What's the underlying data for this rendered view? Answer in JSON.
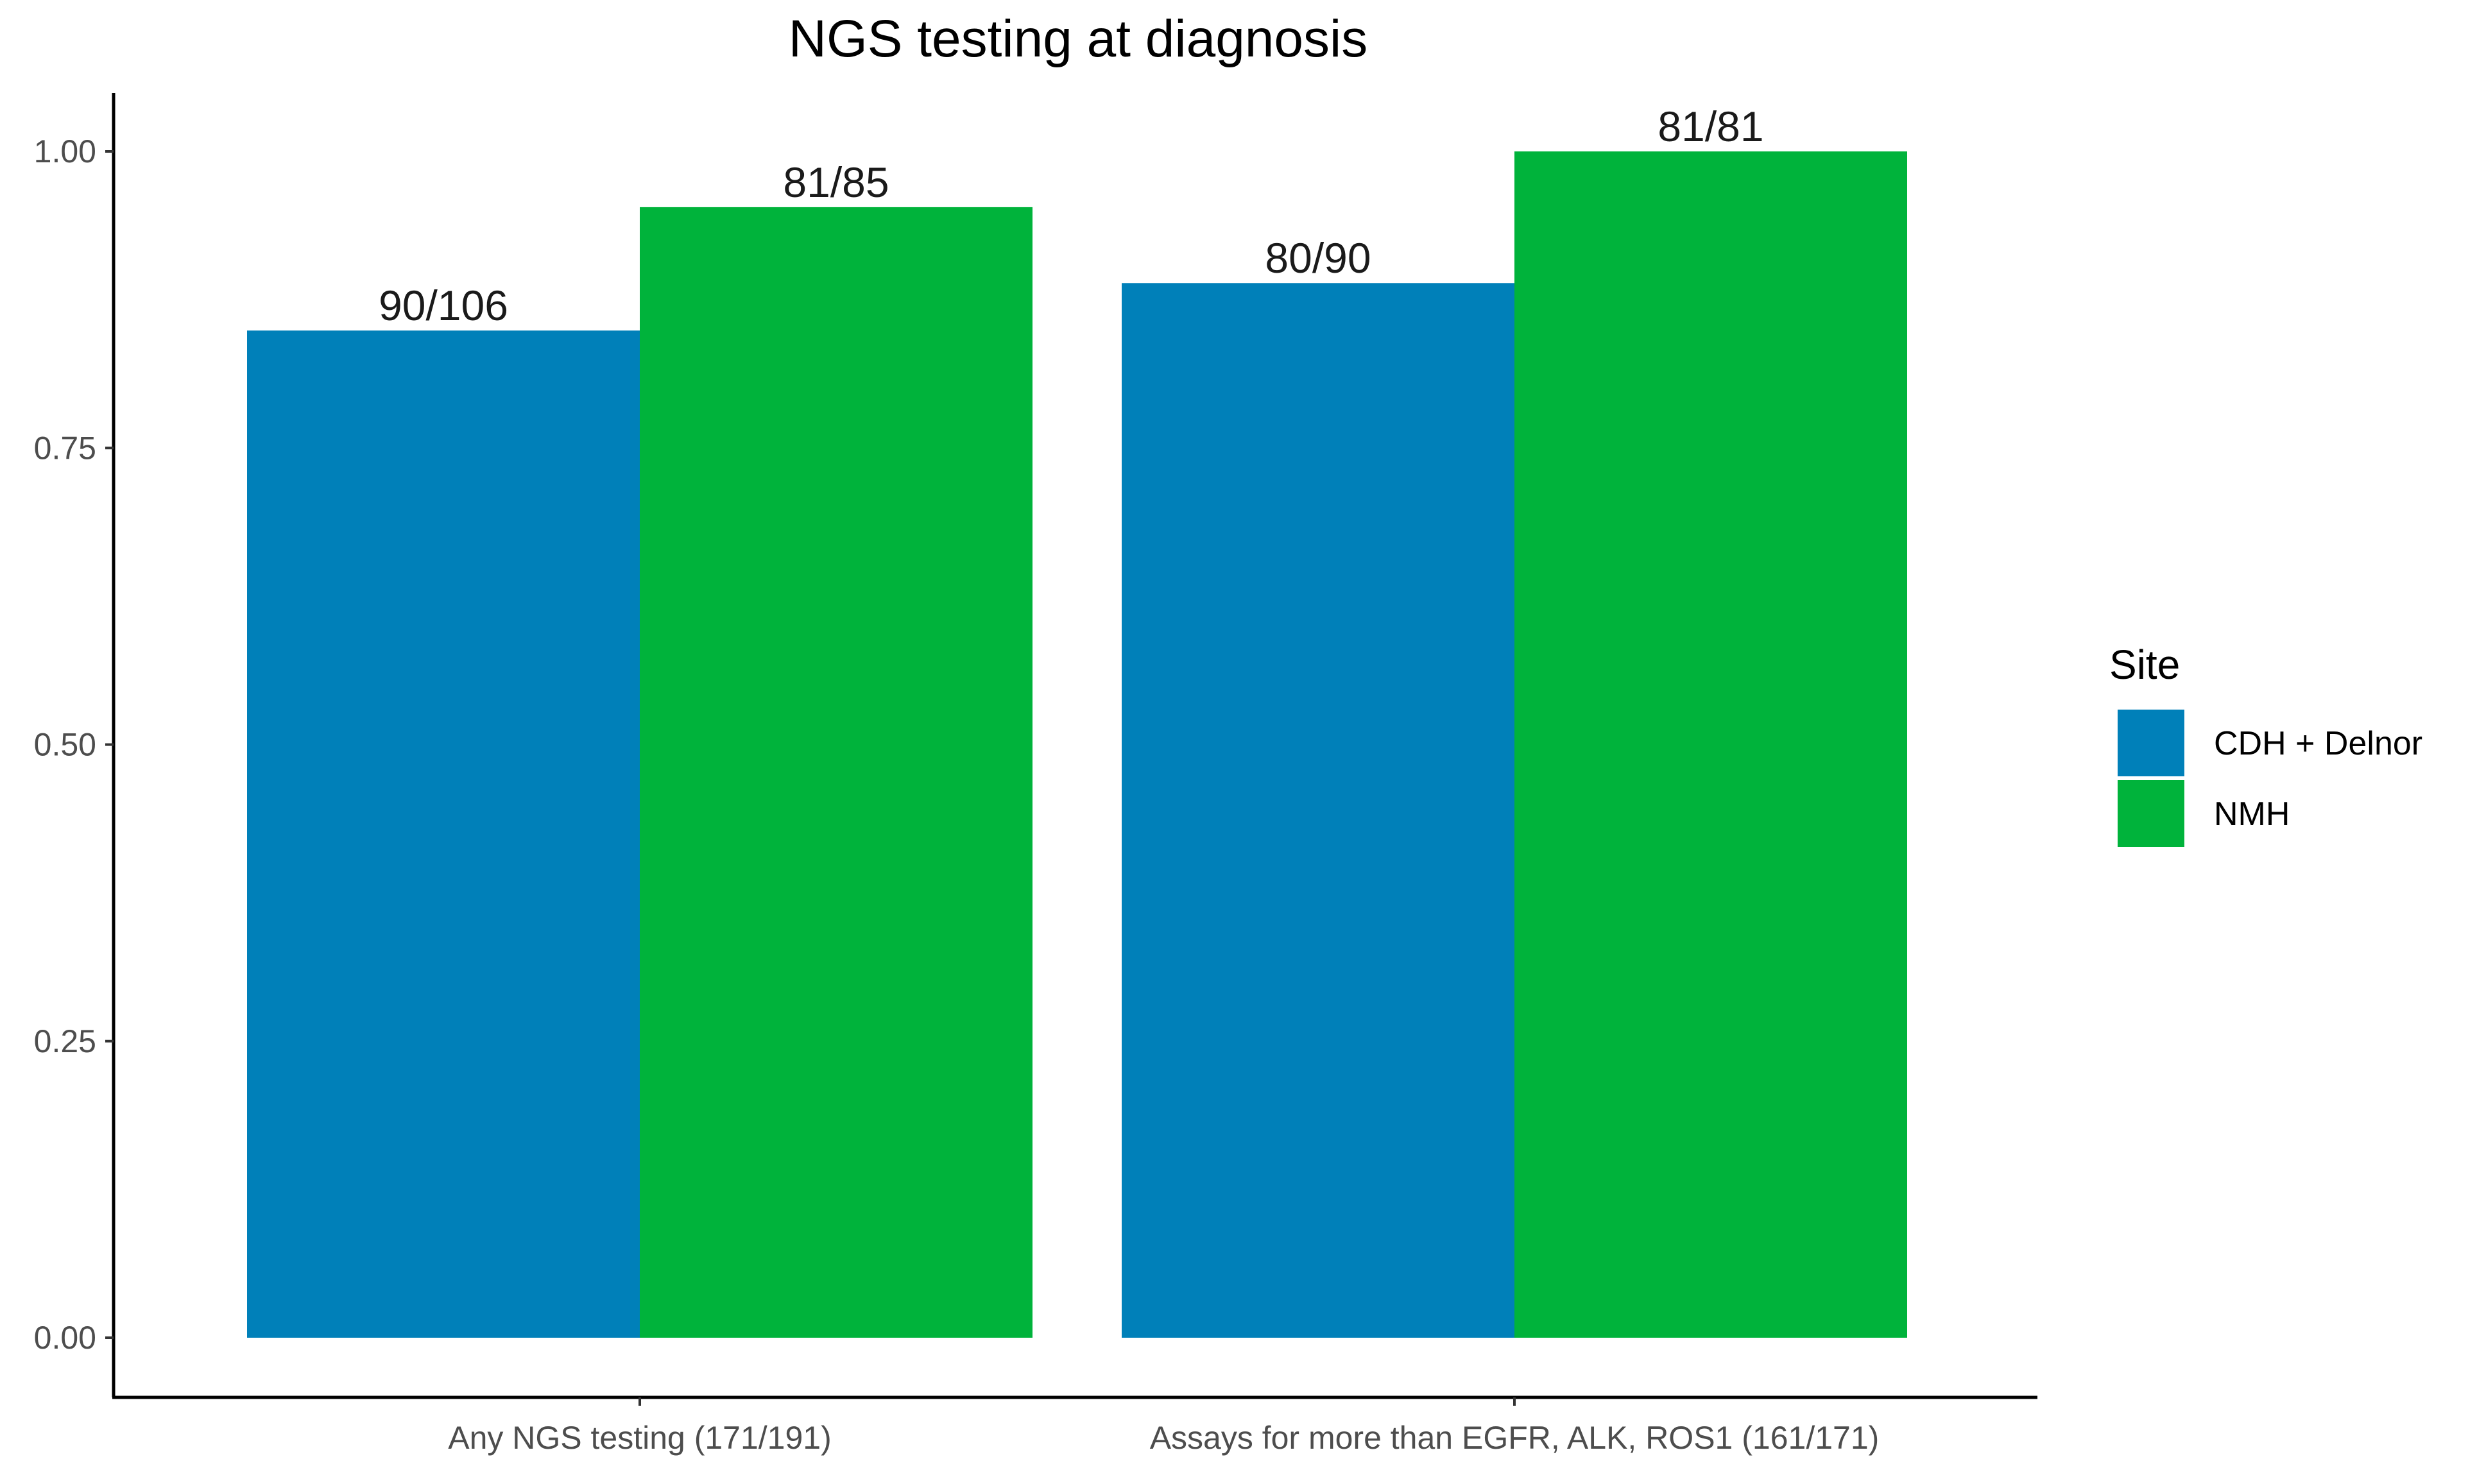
{
  "chart_data": {
    "type": "bar",
    "title": "NGS testing at diagnosis",
    "xlabel": "",
    "ylabel": "",
    "categories": [
      "Any NGS testing (171/191)",
      "Assays for more than EGFR, ALK, ROS1 (161/171)"
    ],
    "series": [
      {
        "name": "CDH + Delnor",
        "color": "#0080b9",
        "values": [
          0.849,
          0.889
        ],
        "labels": [
          "90/106",
          "80/90"
        ]
      },
      {
        "name": "NMH",
        "color": "#00b33b",
        "values": [
          0.953,
          1.0
        ],
        "labels": [
          "81/85",
          "81/81"
        ]
      }
    ],
    "ylim": [
      0,
      1.05
    ],
    "yticks": [
      "0.00",
      "0.25",
      "0.50",
      "0.75",
      "1.00"
    ],
    "grid": false,
    "legend": {
      "title": "Site",
      "placement": "right"
    }
  }
}
